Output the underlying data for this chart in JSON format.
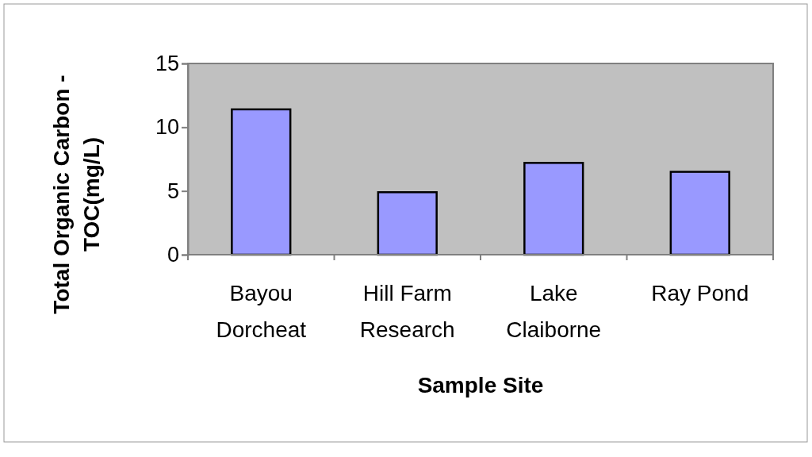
{
  "chart_data": {
    "type": "bar",
    "xlabel": "Sample Site",
    "ylabel": "Total Organic Carbon -\nTOC(mg/L)",
    "categories": [
      "Bayou Dorcheat",
      "Hill Farm Research",
      "Lake Claiborne",
      "Ray Pond"
    ],
    "values": [
      11.4,
      4.9,
      7.2,
      6.5
    ],
    "color": "#9999ff",
    "ylim": [
      0,
      15
    ],
    "yticks": [
      0,
      5,
      10,
      15
    ],
    "grid": false
  }
}
